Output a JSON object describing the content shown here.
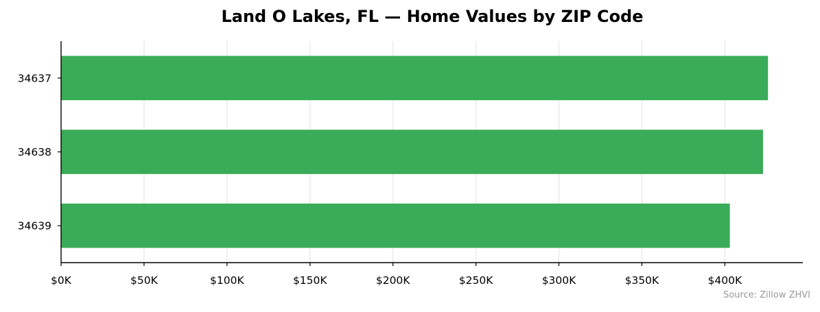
{
  "chart_data": {
    "type": "bar",
    "orientation": "horizontal",
    "title": "Land O Lakes, FL — Home Values by ZIP Code",
    "categories": [
      "34637",
      "34638",
      "34639"
    ],
    "values": [
      426000,
      423000,
      403000
    ],
    "xlim": [
      0,
      447000
    ],
    "xticks": [
      0,
      50000,
      100000,
      150000,
      200000,
      250000,
      300000,
      350000,
      400000
    ],
    "xtick_labels": [
      "$0K",
      "$50K",
      "$100K",
      "$150K",
      "$200K",
      "$250K",
      "$300K",
      "$350K",
      "$400K"
    ],
    "xlabel": "",
    "ylabel": "",
    "grid": "vertical",
    "bar_color": "#34a853",
    "source": "Source: Zillow ZHVI"
  }
}
